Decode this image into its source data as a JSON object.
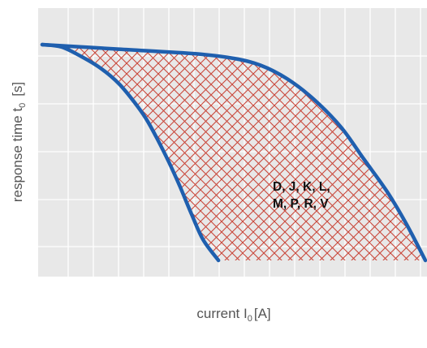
{
  "chart_data": {
    "type": "area",
    "title": "",
    "xlabel_main": "current I",
    "xlabel_sub": "0",
    "xlabel_unit": "[A]",
    "ylabel_main": "response time  t",
    "ylabel_sub": "0",
    "ylabel_unit": "[s]",
    "grid": true,
    "tick_labels": false,
    "region_label_lines": [
      "D, J, K, L,",
      "M, P, R, V"
    ],
    "colors": {
      "grid_background": "#e8e8e8",
      "grid_lines": "#ffffff",
      "hatch": "#c9473a",
      "curve": "#1f5fae",
      "axis_text": "#555555",
      "label_text": "#111111"
    },
    "series": [
      {
        "name": "lower limit curve",
        "x": [
          0.0,
          0.05,
          0.1,
          0.15,
          0.2,
          0.24,
          0.27,
          0.3,
          0.33,
          0.36,
          0.39,
          0.42,
          0.46
        ],
        "y": [
          0.94,
          0.93,
          0.89,
          0.84,
          0.77,
          0.69,
          0.62,
          0.53,
          0.43,
          0.32,
          0.2,
          0.09,
          0.0
        ]
      },
      {
        "name": "upper limit curve",
        "x": [
          0.0,
          0.2,
          0.4,
          0.5,
          0.57,
          0.64,
          0.71,
          0.78,
          0.84,
          0.9,
          0.95,
          1.0
        ],
        "y": [
          0.94,
          0.92,
          0.9,
          0.88,
          0.85,
          0.79,
          0.7,
          0.58,
          0.44,
          0.3,
          0.16,
          0.0
        ]
      }
    ],
    "xlim": [
      0,
      1
    ],
    "ylim": [
      0,
      1
    ]
  }
}
